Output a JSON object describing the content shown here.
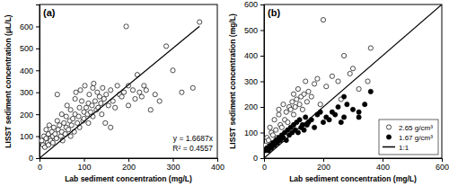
{
  "chart_data": [
    {
      "type": "scatter",
      "title": "(a)",
      "x_label": "Lab sediment concentration (mg/L)",
      "y_label": "LISST sediment concentration (μL/L)",
      "xlim": [
        0,
        400
      ],
      "ylim": [
        0,
        700
      ],
      "xticks": [
        0,
        100,
        200,
        300,
        400
      ],
      "yticks": [
        0,
        100,
        200,
        300,
        400,
        500,
        600
      ],
      "annotations": [
        "y = 1.6687x",
        "R² = 0.4557"
      ],
      "series": [
        {
          "type": "scatter",
          "marker": "open-circle",
          "color": "#000000",
          "x": [
            5,
            8,
            10,
            12,
            15,
            15,
            18,
            20,
            20,
            22,
            25,
            25,
            28,
            30,
            30,
            32,
            35,
            38,
            40,
            40,
            42,
            45,
            48,
            50,
            50,
            52,
            55,
            58,
            60,
            60,
            62,
            65,
            68,
            70,
            70,
            72,
            75,
            78,
            80,
            80,
            82,
            85,
            88,
            90,
            90,
            92,
            95,
            98,
            100,
            100,
            102,
            105,
            108,
            110,
            110,
            112,
            115,
            118,
            120,
            120,
            122,
            125,
            128,
            130,
            132,
            135,
            138,
            140,
            142,
            145,
            148,
            150,
            155,
            160,
            160,
            165,
            170,
            175,
            180,
            185,
            190,
            195,
            200,
            200,
            210,
            215,
            220,
            225,
            230,
            235,
            240,
            250,
            260,
            270,
            285,
            300,
            320,
            345,
            360
          ],
          "values": [
            80,
            60,
            100,
            50,
            90,
            130,
            70,
            110,
            60,
            150,
            90,
            80,
            120,
            100,
            70,
            140,
            110,
            90,
            170,
            290,
            130,
            150,
            100,
            120,
            200,
            80,
            160,
            110,
            190,
            140,
            240,
            130,
            170,
            100,
            220,
            150,
            180,
            120,
            270,
            200,
            300,
            160,
            190,
            230,
            140,
            310,
            260,
            170,
            210,
            180,
            330,
            230,
            200,
            250,
            160,
            290,
            210,
            240,
            190,
            320,
            340,
            260,
            220,
            300,
            230,
            280,
            250,
            200,
            320,
            270,
            160,
            290,
            240,
            310,
            140,
            260,
            230,
            330,
            290,
            280,
            300,
            600,
            330,
            240,
            310,
            270,
            380,
            300,
            280,
            330,
            310,
            220,
            290,
            260,
            510,
            400,
            300,
            320,
            620
          ]
        },
        {
          "type": "line",
          "line_style": "solid",
          "color": "#000000",
          "x": [
            0,
            360
          ],
          "values": [
            0,
            601
          ]
        }
      ]
    },
    {
      "type": "scatter",
      "title": "(b)",
      "x_label": "Lab sediment concentration (mg/L)",
      "y_label": "LISST sediment concentration (mg/L)",
      "xlim": [
        0,
        600
      ],
      "ylim": [
        0,
        600
      ],
      "xticks": [
        0,
        200,
        400,
        600
      ],
      "yticks": [
        0,
        100,
        200,
        300,
        400,
        500,
        600
      ],
      "legend": "lower right",
      "series": [
        {
          "name": "2.65 g/cm³",
          "type": "scatter",
          "marker": "open-circle",
          "color": "#000000",
          "x": [
            5,
            10,
            15,
            20,
            20,
            25,
            30,
            35,
            40,
            45,
            50,
            50,
            55,
            60,
            65,
            70,
            75,
            80,
            85,
            90,
            95,
            100,
            100,
            105,
            110,
            115,
            120,
            125,
            130,
            135,
            140,
            145,
            150,
            160,
            170,
            180,
            190,
            200,
            210,
            230,
            250,
            260,
            270,
            290,
            300,
            320,
            350,
            360
          ],
          "values": [
            50,
            80,
            70,
            120,
            40,
            100,
            90,
            150,
            110,
            80,
            170,
            190,
            130,
            120,
            210,
            150,
            180,
            140,
            200,
            190,
            220,
            170,
            250,
            200,
            230,
            270,
            210,
            240,
            190,
            250,
            300,
            220,
            260,
            240,
            290,
            310,
            210,
            540,
            280,
            320,
            300,
            230,
            400,
            330,
            350,
            270,
            300,
            430
          ]
        },
        {
          "name": "1.67 g/cm³",
          "type": "scatter",
          "marker": "filled-circle",
          "color": "#000000",
          "x": [
            5,
            10,
            15,
            20,
            25,
            30,
            35,
            40,
            45,
            50,
            55,
            60,
            65,
            70,
            75,
            80,
            85,
            90,
            95,
            100,
            105,
            110,
            115,
            120,
            125,
            130,
            135,
            140,
            145,
            150,
            160,
            170,
            180,
            190,
            200,
            210,
            220,
            230,
            240,
            250,
            260,
            270,
            280,
            300,
            320,
            340,
            360,
            320,
            270
          ],
          "values": [
            30,
            40,
            30,
            50,
            40,
            60,
            50,
            70,
            60,
            80,
            70,
            90,
            80,
            100,
            70,
            110,
            90,
            120,
            100,
            130,
            110,
            140,
            100,
            150,
            120,
            130,
            110,
            160,
            130,
            140,
            150,
            120,
            170,
            180,
            140,
            160,
            150,
            180,
            170,
            200,
            140,
            160,
            210,
            190,
            180,
            210,
            260,
            160,
            240
          ]
        },
        {
          "name": "1:1",
          "type": "line",
          "line_style": "solid",
          "color": "#000000",
          "x": [
            0,
            600
          ],
          "values": [
            0,
            600
          ]
        }
      ]
    }
  ]
}
